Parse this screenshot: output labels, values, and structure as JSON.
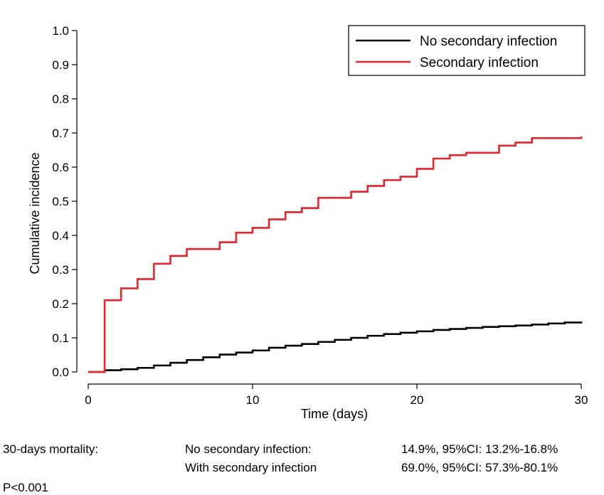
{
  "chart_data": {
    "type": "line",
    "step": true,
    "title": "",
    "xlabel": "Time (days)",
    "ylabel": "Cumulative incidence",
    "xlim": [
      0,
      30
    ],
    "ylim": [
      0,
      1.0
    ],
    "xticks": [
      0,
      10,
      20,
      30
    ],
    "yticks": [
      "0.0",
      "0.1",
      "0.2",
      "0.3",
      "0.4",
      "0.5",
      "0.6",
      "0.7",
      "0.8",
      "0.9",
      "1.0"
    ],
    "grid": false,
    "legend_position": "top-right",
    "series": [
      {
        "name": "No secondary infection",
        "color": "#000000",
        "x": [
          0,
          1,
          2,
          3,
          4,
          5,
          6,
          7,
          8,
          9,
          10,
          11,
          12,
          13,
          14,
          15,
          16,
          17,
          18,
          19,
          20,
          21,
          22,
          23,
          24,
          25,
          26,
          27,
          28,
          29,
          30
        ],
        "y": [
          0.0,
          0.005,
          0.008,
          0.012,
          0.019,
          0.027,
          0.035,
          0.043,
          0.051,
          0.057,
          0.063,
          0.071,
          0.077,
          0.082,
          0.088,
          0.094,
          0.1,
          0.106,
          0.111,
          0.115,
          0.119,
          0.123,
          0.126,
          0.129,
          0.132,
          0.134,
          0.136,
          0.139,
          0.142,
          0.145,
          0.148
        ]
      },
      {
        "name": "Secondary infection",
        "color": "#e3262c",
        "x": [
          0,
          1,
          2,
          3,
          4,
          5,
          6,
          8,
          9,
          10,
          11,
          12,
          13,
          14,
          16,
          17,
          18,
          19,
          20,
          21,
          22,
          23,
          25,
          26,
          27,
          30
        ],
        "y": [
          0.0,
          0.21,
          0.245,
          0.272,
          0.317,
          0.34,
          0.36,
          0.38,
          0.408,
          0.422,
          0.447,
          0.468,
          0.48,
          0.51,
          0.528,
          0.545,
          0.562,
          0.572,
          0.595,
          0.625,
          0.635,
          0.642,
          0.663,
          0.672,
          0.685,
          0.69
        ]
      }
    ]
  },
  "footer": {
    "mortality_label": "30-days mortality:",
    "group1_label": "No secondary infection:",
    "group1_value": "14.9%, 95%CI: 13.2%-16.8%",
    "group2_label": "With secondary infection",
    "group2_value": "69.0%, 95%CI: 57.3%-80.1%",
    "p_value": "P<0.001"
  }
}
